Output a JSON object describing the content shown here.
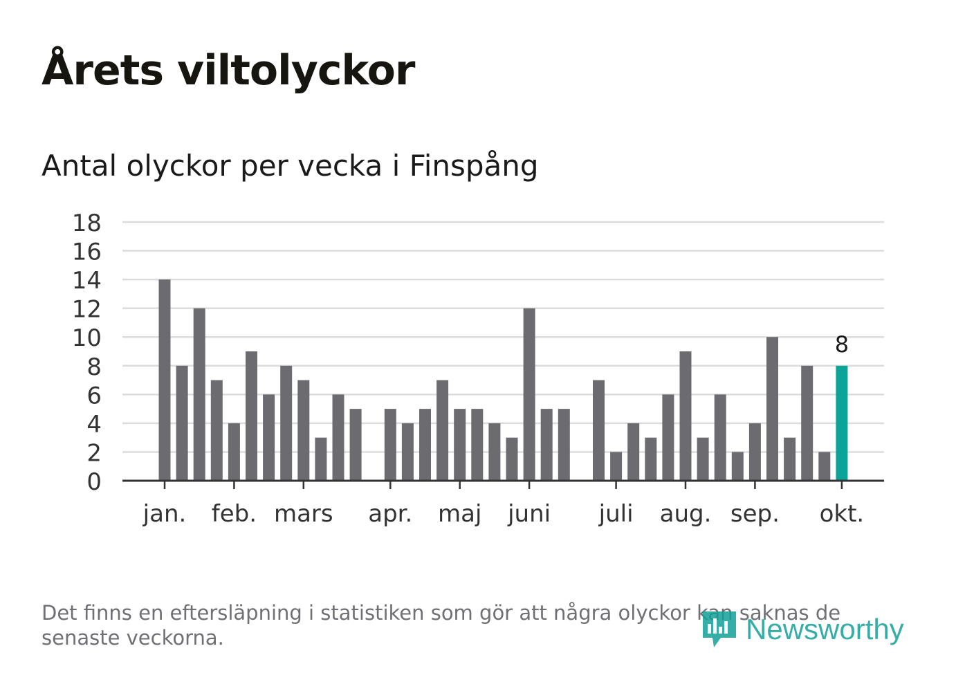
{
  "title": "Årets viltolyckor",
  "subtitle": "Antal olyckor per vecka i Finspång",
  "footnote": "Det finns en eftersläpning i statistiken som gör att några olyckor kan saknas de senaste veckorna.",
  "logo": {
    "text": "Newsworthy",
    "icon": "newsworthy-logo-icon"
  },
  "colors": {
    "bar": "#6c6b70",
    "highlight": "#0ea398",
    "grid": "#dcdcdc",
    "axis": "#333333"
  },
  "chart_data": {
    "type": "bar",
    "title": "Antal olyckor per vecka i Finspång",
    "xlabel": "",
    "ylabel": "",
    "ylim": [
      0,
      18
    ],
    "yticks": [
      0,
      2,
      4,
      6,
      8,
      10,
      12,
      14,
      16,
      18
    ],
    "grid": true,
    "weeks": [
      1,
      2,
      3,
      4,
      5,
      6,
      7,
      8,
      9,
      10,
      11,
      12,
      13,
      14,
      15,
      16,
      17,
      18,
      19,
      20,
      21,
      22,
      23,
      24,
      25,
      26,
      27,
      28,
      29,
      30,
      31,
      32,
      33,
      34,
      35,
      36,
      37,
      38,
      39,
      40
    ],
    "values": [
      14,
      8,
      12,
      7,
      4,
      9,
      6,
      8,
      7,
      3,
      6,
      5,
      0,
      5,
      4,
      5,
      7,
      5,
      5,
      4,
      3,
      12,
      5,
      5,
      0,
      7,
      2,
      4,
      3,
      6,
      9,
      3,
      6,
      2,
      4,
      10,
      3,
      8,
      2,
      8
    ],
    "month_labels": [
      {
        "label": "jan.",
        "week": 1
      },
      {
        "label": "feb.",
        "week": 5
      },
      {
        "label": "mars",
        "week": 9
      },
      {
        "label": "apr.",
        "week": 14
      },
      {
        "label": "maj",
        "week": 18
      },
      {
        "label": "juni",
        "week": 22
      },
      {
        "label": "juli",
        "week": 27
      },
      {
        "label": "aug.",
        "week": 31
      },
      {
        "label": "sep.",
        "week": 35
      },
      {
        "label": "okt.",
        "week": 40
      }
    ],
    "highlight_week": 40,
    "highlight_label": "8"
  }
}
